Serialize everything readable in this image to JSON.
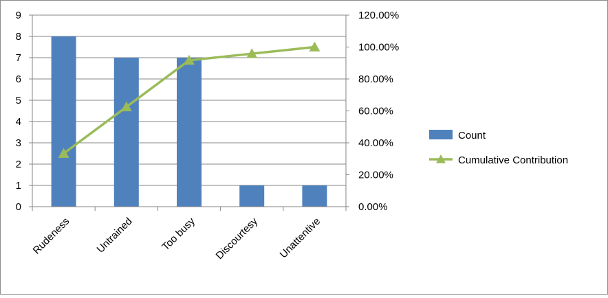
{
  "chart_data": {
    "type": "bar",
    "categories": [
      "Rudeness",
      "Untrained",
      "Too busy",
      "Discourtesy",
      "Unattentive"
    ],
    "series": [
      {
        "name": "Count",
        "type": "bar",
        "axis": "left",
        "color": "#4f81bd",
        "values": [
          8,
          7,
          7,
          1,
          1
        ]
      },
      {
        "name": "Cumulative Contribution",
        "type": "line",
        "axis": "right",
        "color": "#9bbb59",
        "marker": "triangle",
        "values": [
          33.33,
          62.5,
          91.67,
          95.83,
          100
        ]
      }
    ],
    "y_left": {
      "min": 0,
      "max": 9,
      "ticks": [
        "0",
        "1",
        "2",
        "3",
        "4",
        "5",
        "6",
        "7",
        "8",
        "9"
      ]
    },
    "y_right": {
      "min": 0,
      "max": 120,
      "ticks": [
        "0.00%",
        "20.00%",
        "40.00%",
        "60.00%",
        "80.00%",
        "100.00%",
        "120.00%"
      ]
    },
    "grid": true,
    "legend_position": "right",
    "title": "",
    "xlabel": "",
    "ylabel": ""
  }
}
